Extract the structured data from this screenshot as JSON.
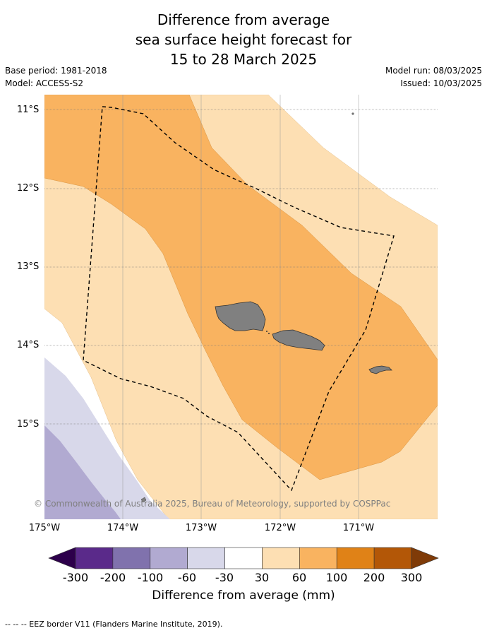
{
  "title": {
    "line1": "Difference from average",
    "line2": "sea surface height forecast for",
    "line3": "15 to 28 March 2025"
  },
  "meta": {
    "base_period": "Base period: 1981-2018",
    "model": "Model: ACCESS-S2",
    "model_run": "Model run: 08/03/2025",
    "issued": "Issued: 10/03/2025"
  },
  "map": {
    "lat_labels": [
      "11°S",
      "12°S",
      "13°S",
      "14°S",
      "15°S"
    ],
    "lon_labels": [
      "175°W",
      "174°W",
      "173°W",
      "172°W",
      "171°W"
    ],
    "copyright": "© Commonwealth of Australia 2025, Bureau of Meteorology, supported by COSPPac",
    "colors": {
      "land": "#808080",
      "neg_30_60": "#d8d8ea",
      "neg_60_100": "#b1aad1",
      "pos_30_60": "#fddfb3",
      "pos_60_100": "#f9b360"
    }
  },
  "colorbar": {
    "ticks": [
      "-300",
      "-200",
      "-100",
      "-60",
      "-30",
      "30",
      "60",
      "100",
      "200",
      "300"
    ],
    "colors": [
      "#5a2a8a",
      "#8072ad",
      "#b1aad1",
      "#d8d8ea",
      "#ffffff",
      "#fddfb3",
      "#f9b360",
      "#e08217",
      "#b35707"
    ],
    "under_color": "#2d004b",
    "over_color": "#7f3b08",
    "label": "Difference from average (mm)"
  },
  "footnote": "-- -- -- EEZ border V11 (Flanders Marine Institute, 2019)."
}
